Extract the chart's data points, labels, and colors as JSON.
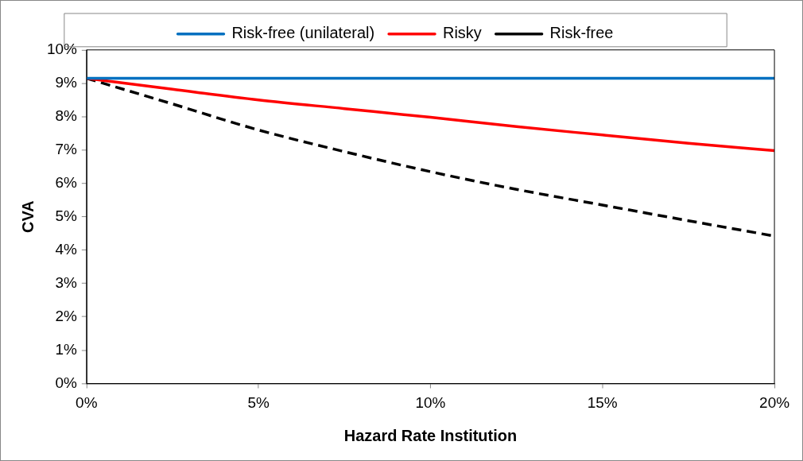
{
  "chart_data": {
    "type": "line",
    "xlabel": "Hazard Rate Institution",
    "ylabel": "CVA",
    "x": [
      0,
      2.5,
      5,
      7.5,
      10,
      12.5,
      15,
      17.5,
      20
    ],
    "series": [
      {
        "name": "Risk-free (unilateral)",
        "color": "#0070c0",
        "values": [
          9.15,
          9.15,
          9.15,
          9.15,
          9.15,
          9.15,
          9.15,
          9.15,
          9.15
        ]
      },
      {
        "name": "Risky",
        "color": "#ff0000",
        "values": [
          9.15,
          8.82,
          8.5,
          8.24,
          7.98,
          7.7,
          7.45,
          7.2,
          6.98
        ]
      },
      {
        "name": "Risk-free",
        "color": "#000000",
        "line_style": "dashed",
        "values": [
          9.15,
          8.38,
          7.6,
          6.95,
          6.35,
          5.82,
          5.35,
          4.88,
          4.42
        ]
      }
    ],
    "xlim": [
      0,
      20
    ],
    "xticks": [
      {
        "value": 0,
        "label": "0%"
      },
      {
        "value": 5,
        "label": "5%"
      },
      {
        "value": 10,
        "label": "10%"
      },
      {
        "value": 15,
        "label": "15%"
      },
      {
        "value": 20,
        "label": "20%"
      }
    ],
    "ylim": [
      0,
      10
    ],
    "yticks": [
      {
        "value": 0,
        "label": "0%"
      },
      {
        "value": 1,
        "label": "1%"
      },
      {
        "value": 2,
        "label": "2%"
      },
      {
        "value": 3,
        "label": "3%"
      },
      {
        "value": 4,
        "label": "4%"
      },
      {
        "value": 5,
        "label": "5%"
      },
      {
        "value": 6,
        "label": "6%"
      },
      {
        "value": 7,
        "label": "7%"
      },
      {
        "value": 8,
        "label": "8%"
      },
      {
        "value": 9,
        "label": "9%"
      },
      {
        "value": 10,
        "label": "10%"
      }
    ],
    "grid": false,
    "legend": "top",
    "marker": "none",
    "line_style": "solid"
  }
}
